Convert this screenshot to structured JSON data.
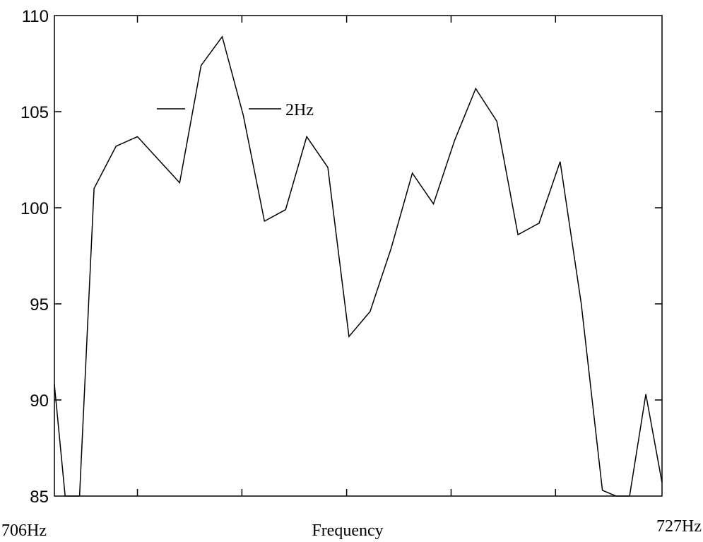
{
  "chart_data": {
    "type": "line",
    "title": "",
    "xlabel": "Frequency",
    "ylabel": "",
    "xlim": [
      706,
      727
    ],
    "ylim": [
      85,
      110
    ],
    "x_start_label": "706Hz",
    "x_end_label": "727Hz",
    "yticks": [
      85,
      90,
      95,
      100,
      105,
      110
    ],
    "ytick_labels": [
      "85",
      "90",
      "95",
      "100",
      "105",
      "110"
    ],
    "xtick_values": [
      706,
      708.87,
      712.48,
      716.1,
      719.71,
      723.32,
      727
    ],
    "grid": false,
    "legend": {
      "position": "top-left",
      "text": "2Hz"
    },
    "series": [
      {
        "name": "2Hz",
        "x": [
          706,
          706.37,
          706.87,
          707.37,
          708.13,
          708.87,
          709.6,
          710.33,
          711.07,
          711.8,
          712.53,
          713.26,
          713.99,
          714.72,
          715.45,
          716.18,
          716.91,
          717.64,
          718.37,
          719.1,
          719.83,
          720.56,
          721.29,
          722.02,
          722.75,
          723.48,
          724.21,
          724.94,
          725.41,
          725.88,
          726.44,
          727
        ],
        "y": [
          90.8,
          85,
          85,
          101.0,
          103.2,
          103.7,
          102.5,
          101.3,
          107.4,
          108.9,
          104.8,
          99.3,
          99.9,
          103.7,
          102.1,
          93.3,
          94.6,
          97.9,
          101.8,
          100.2,
          103.5,
          106.2,
          104.5,
          98.6,
          99.2,
          102.4,
          95.0,
          85.3,
          85,
          85,
          90.3,
          85.7
        ]
      }
    ]
  }
}
